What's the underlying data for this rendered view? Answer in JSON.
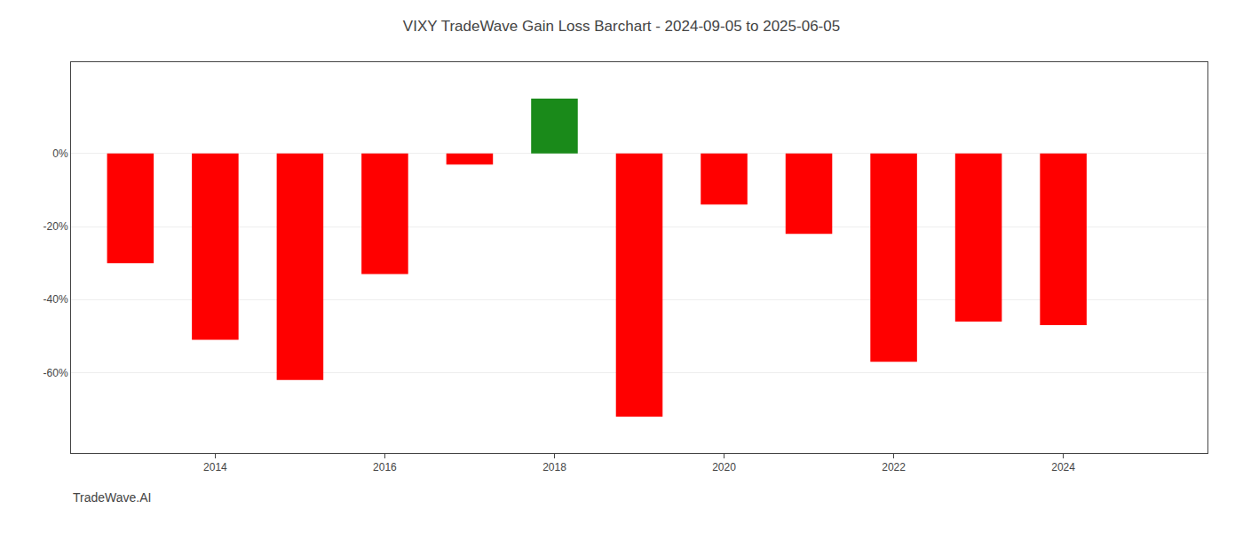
{
  "chart_data": {
    "type": "bar",
    "title": "VIXY TradeWave Gain Loss Barchart - 2024-09-05 to 2025-06-05",
    "annotations": [
      "TradeWave.AI"
    ],
    "x": [
      2013,
      2014,
      2015,
      2016,
      2017,
      2018,
      2019,
      2020,
      2021,
      2022,
      2023,
      2024
    ],
    "values": [
      -0.3,
      -0.51,
      -0.62,
      -0.33,
      -0.03,
      0.15,
      -0.72,
      -0.14,
      -0.22,
      -0.57,
      -0.46,
      -0.47
    ],
    "colors": [
      "#ff0000",
      "#ff0000",
      "#ff0000",
      "#ff0000",
      "#ff0000",
      "#1a8a1a",
      "#ff0000",
      "#ff0000",
      "#ff0000",
      "#ff0000",
      "#ff0000",
      "#ff0000"
    ],
    "xlim": [
      2012.3,
      2025.7
    ],
    "xticks": [
      2014,
      2016,
      2018,
      2020,
      2022,
      2024
    ],
    "ylim": [
      -0.82,
      0.25
    ],
    "yticks": [
      {
        "value": -0.6,
        "label": "-60%"
      },
      {
        "value": -0.4,
        "label": "-40%"
      },
      {
        "value": -0.2,
        "label": "-20%"
      },
      {
        "value": 0.0,
        "label": "0%"
      }
    ],
    "grid": true
  }
}
